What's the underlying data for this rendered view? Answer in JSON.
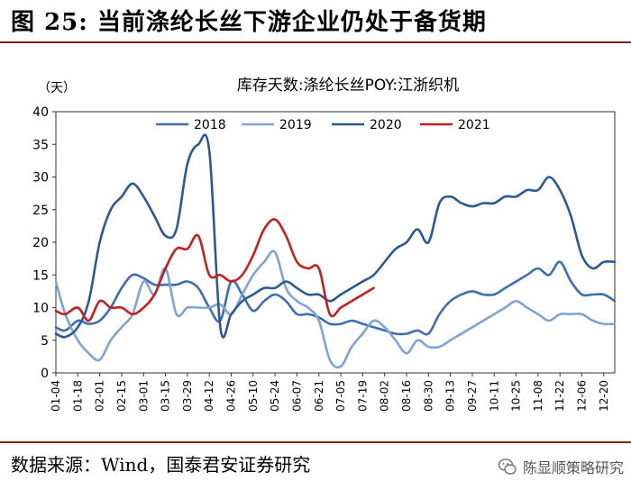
{
  "figure": {
    "label": "图 25:",
    "title": "当前涤纶长丝下游企业仍处于备货期",
    "source": "数据来源：Wind，国泰君安证券研究",
    "watermark": "陈显顺策略研究"
  },
  "colors": {
    "2018": "#3b6fb0",
    "2019": "#7fa3d6",
    "2020": "#2a5a94",
    "2021": "#c41e1e",
    "rule": "#8a1a1a"
  },
  "chart_data": {
    "type": "line",
    "title": "库存天数:涤纶长丝POY:江浙织机",
    "xlabel": "",
    "ylabel": "（天）",
    "ylim": [
      0,
      40
    ],
    "yticks": [
      0,
      5,
      10,
      15,
      20,
      25,
      30,
      35,
      40
    ],
    "xlim": [
      4,
      361
    ],
    "xtick_labels": [
      "01-04",
      "01-18",
      "02-01",
      "02-15",
      "03-01",
      "03-15",
      "03-29",
      "04-12",
      "04-26",
      "05-10",
      "05-24",
      "06-07",
      "06-21",
      "07-05",
      "07-19",
      "08-02",
      "08-16",
      "08-30",
      "09-13",
      "09-27",
      "10-11",
      "10-25",
      "11-08",
      "11-22",
      "12-06",
      "12-20"
    ],
    "xtick_days": [
      4,
      18,
      32,
      46,
      60,
      74,
      88,
      102,
      116,
      130,
      144,
      158,
      172,
      186,
      200,
      214,
      228,
      242,
      256,
      270,
      284,
      298,
      312,
      326,
      340,
      354
    ],
    "grid": false,
    "legend_position": "top",
    "series": [
      {
        "name": "2018",
        "x": [
          4,
          10,
          18,
          25,
          32,
          39,
          46,
          53,
          60,
          67,
          74,
          81,
          88,
          95,
          102,
          109,
          116,
          123,
          130,
          137,
          144,
          151,
          158,
          165,
          172,
          179,
          186,
          193,
          200,
          207,
          214,
          221,
          228,
          235,
          242,
          249,
          256,
          263,
          270,
          277,
          284,
          291,
          298,
          305,
          312,
          319,
          326,
          333,
          340,
          347,
          354,
          361
        ],
        "values": [
          7,
          6.5,
          8,
          7.5,
          8,
          10,
          13,
          15,
          14.5,
          13.5,
          13.5,
          13.5,
          14,
          13,
          10,
          8,
          14,
          12,
          9.5,
          11,
          12,
          11,
          9,
          9,
          8.5,
          7.5,
          7.5,
          8,
          7.5,
          7,
          6.5,
          6,
          6,
          6.5,
          6,
          9,
          11,
          12,
          12.5,
          12,
          12,
          13,
          14,
          15,
          16,
          15,
          17,
          14,
          12,
          12,
          12,
          11
        ]
      },
      {
        "name": "2019",
        "x": [
          4,
          10,
          18,
          25,
          32,
          39,
          46,
          53,
          60,
          67,
          74,
          81,
          88,
          95,
          102,
          109,
          116,
          123,
          130,
          137,
          144,
          151,
          158,
          165,
          172,
          179,
          186,
          193,
          200,
          207,
          214,
          221,
          228,
          235,
          242,
          249,
          256,
          263,
          270,
          277,
          284,
          291,
          298,
          305,
          312,
          319,
          326,
          333,
          340,
          347,
          354,
          361
        ],
        "values": [
          14,
          9,
          5,
          3,
          2,
          5,
          7,
          9,
          14,
          12,
          16,
          9,
          10,
          10,
          10,
          10.5,
          9,
          12,
          15,
          17,
          18.5,
          13,
          11,
          10,
          8,
          2,
          1,
          4,
          6,
          8,
          7,
          5,
          3,
          5,
          4,
          4,
          5,
          6,
          7,
          8,
          9,
          10,
          11,
          10,
          9,
          8,
          9,
          9,
          9,
          8,
          7.5,
          7.5
        ]
      },
      {
        "name": "2020",
        "x": [
          4,
          10,
          18,
          25,
          32,
          39,
          46,
          53,
          60,
          67,
          74,
          81,
          88,
          95,
          102,
          109,
          116,
          123,
          130,
          137,
          144,
          151,
          158,
          165,
          172,
          179,
          186,
          193,
          200,
          207,
          214,
          221,
          228,
          235,
          242,
          249,
          256,
          263,
          270,
          277,
          284,
          291,
          298,
          305,
          312,
          319,
          326,
          333,
          340,
          347,
          354,
          361
        ],
        "values": [
          6,
          5.5,
          7,
          11,
          20,
          25,
          27,
          29,
          27,
          24,
          21,
          22,
          32,
          35,
          34,
          7,
          9,
          11,
          12,
          13,
          13,
          14,
          13,
          12,
          12,
          11,
          12,
          13,
          14,
          15,
          17,
          19,
          20,
          22,
          20,
          26,
          27,
          26,
          25.5,
          26,
          26,
          27,
          27,
          28,
          28,
          30,
          28,
          24,
          18,
          16,
          17,
          17
        ]
      },
      {
        "name": "2021",
        "x": [
          4,
          10,
          18,
          25,
          32,
          39,
          46,
          53,
          60,
          67,
          74,
          81,
          88,
          95,
          102,
          109,
          116,
          123,
          130,
          137,
          144,
          151,
          158,
          165,
          172,
          179,
          186,
          193,
          200,
          207
        ],
        "values": [
          9.5,
          9,
          10,
          8,
          11,
          10,
          10,
          9,
          10,
          12,
          16,
          19,
          19,
          21,
          15,
          15,
          14,
          15,
          18,
          22,
          23.5,
          21,
          17,
          16,
          16,
          9,
          10,
          11,
          12,
          13
        ]
      }
    ]
  }
}
